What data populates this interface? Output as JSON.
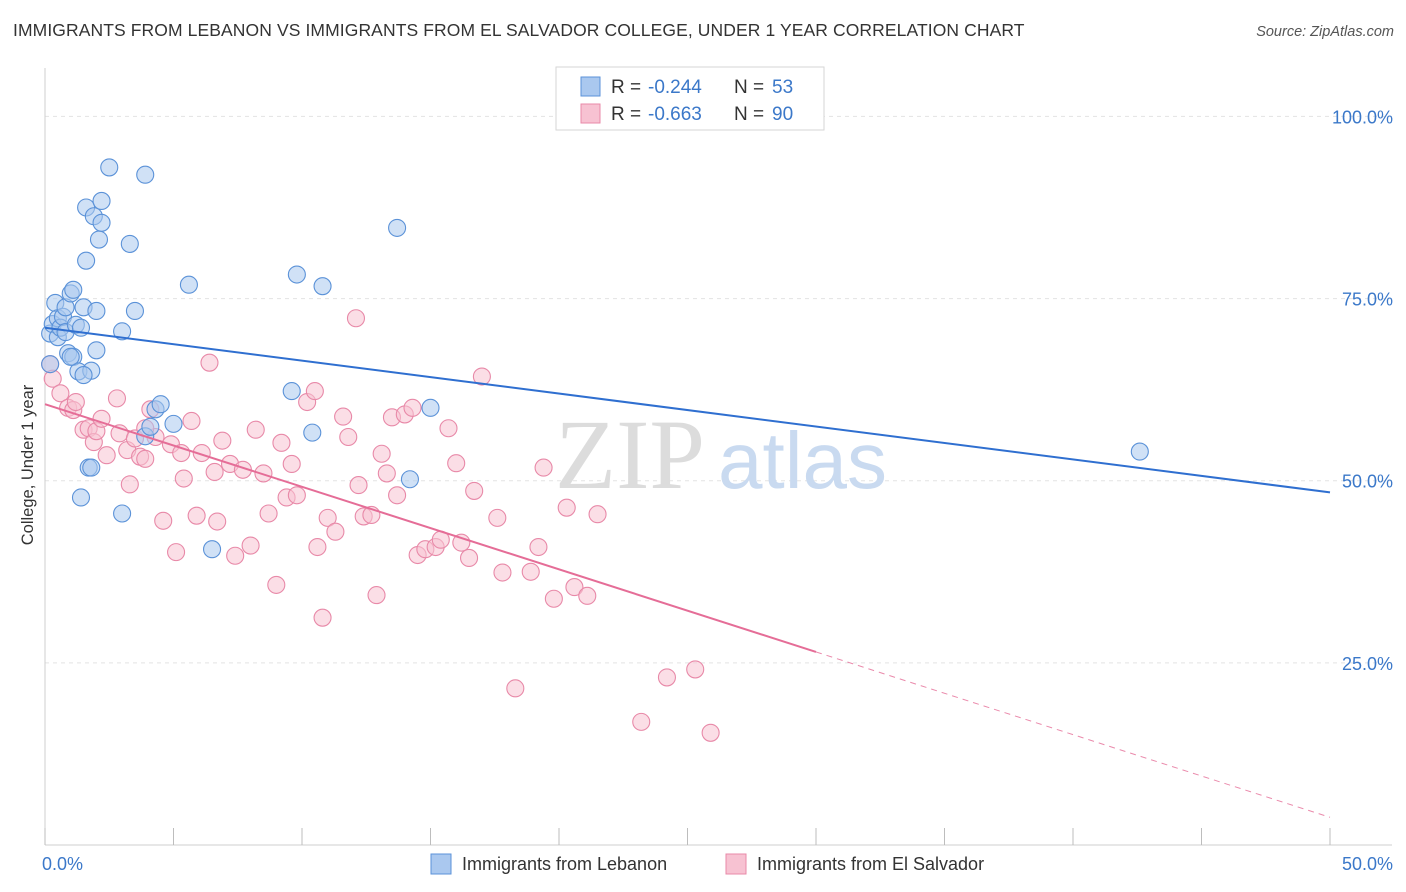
{
  "title": "IMMIGRANTS FROM LEBANON VS IMMIGRANTS FROM EL SALVADOR COLLEGE, UNDER 1 YEAR CORRELATION CHART",
  "source": "Source: ZipAtlas.com",
  "watermark": {
    "zip": "ZIP",
    "atlas": "atlas"
  },
  "stats_box": {
    "rows": [
      {
        "r_label": "R =",
        "r_value": "-0.244",
        "n_label": "N =",
        "n_value": "53"
      },
      {
        "r_label": "R =",
        "r_value": "-0.663",
        "n_label": "N =",
        "n_value": "90"
      }
    ]
  },
  "legend": {
    "items": [
      {
        "label": "Immigrants from Lebanon"
      },
      {
        "label": "Immigrants from El Salvador"
      }
    ]
  },
  "colors": {
    "blue_fill": "#aac8ef",
    "blue_stroke": "#5b92d8",
    "blue_line": "#2f6fd0",
    "pink_fill": "#f7c2d2",
    "pink_stroke": "#e889a8",
    "pink_line": "#e56d97",
    "tick_text": "#3b78c9",
    "grid": "#e3e3e3"
  },
  "chart_data": {
    "type": "scatter",
    "title": "IMMIGRANTS FROM LEBANON VS IMMIGRANTS FROM EL SALVADOR COLLEGE, UNDER 1 YEAR CORRELATION CHART",
    "xlabel": "",
    "ylabel": "College, Under 1 year",
    "xlim": [
      0,
      50
    ],
    "ylim": [
      0,
      105
    ],
    "x_tick_labels": [
      "0.0%",
      "50.0%"
    ],
    "y_ticks": [
      25,
      50,
      75,
      100
    ],
    "y_tick_labels": [
      "25.0%",
      "50.0%",
      "75.0%",
      "100.0%"
    ],
    "grid": true,
    "legend_position": "bottom-center",
    "series": [
      {
        "name": "Immigrants from Lebanon",
        "r": -0.244,
        "n": 53,
        "trend": {
          "x": [
            0,
            50
          ],
          "y": [
            71.0,
            48.4
          ]
        },
        "points": [
          [
            0.2,
            70.2
          ],
          [
            0.3,
            71.5
          ],
          [
            0.4,
            74.4
          ],
          [
            0.5,
            72.3
          ],
          [
            0.5,
            69.7
          ],
          [
            0.6,
            71.0
          ],
          [
            0.7,
            72.5
          ],
          [
            0.8,
            73.8
          ],
          [
            0.8,
            70.4
          ],
          [
            0.9,
            67.5
          ],
          [
            1.0,
            75.7
          ],
          [
            1.1,
            76.2
          ],
          [
            1.1,
            67.0
          ],
          [
            1.2,
            71.4
          ],
          [
            1.3,
            65.0
          ],
          [
            1.4,
            71.0
          ],
          [
            1.5,
            73.8
          ],
          [
            1.6,
            80.2
          ],
          [
            1.6,
            87.5
          ],
          [
            1.7,
            51.8
          ],
          [
            1.8,
            65.1
          ],
          [
            1.9,
            86.3
          ],
          [
            2.0,
            73.3
          ],
          [
            2.0,
            67.9
          ],
          [
            2.1,
            83.1
          ],
          [
            2.2,
            88.4
          ],
          [
            2.2,
            85.4
          ],
          [
            1.8,
            51.8
          ],
          [
            1.4,
            47.7
          ],
          [
            2.5,
            93.0
          ],
          [
            3.0,
            70.5
          ],
          [
            3.0,
            45.5
          ],
          [
            3.3,
            82.5
          ],
          [
            3.5,
            73.3
          ],
          [
            3.9,
            56.1
          ],
          [
            3.9,
            92.0
          ],
          [
            4.1,
            57.4
          ],
          [
            4.3,
            59.8
          ],
          [
            4.5,
            60.5
          ],
          [
            5.0,
            57.8
          ],
          [
            5.6,
            76.9
          ],
          [
            6.5,
            40.6
          ],
          [
            9.6,
            62.3
          ],
          [
            9.8,
            78.3
          ],
          [
            10.4,
            56.6
          ],
          [
            10.8,
            76.7
          ],
          [
            13.7,
            84.7
          ],
          [
            14.2,
            50.2
          ],
          [
            15.0,
            60.0
          ],
          [
            42.6,
            54.0
          ],
          [
            0.2,
            66.0
          ],
          [
            1.0,
            67.0
          ],
          [
            1.5,
            64.5
          ]
        ]
      },
      {
        "name": "Immigrants from El Salvador",
        "r": -0.663,
        "n": 90,
        "trend": {
          "x": [
            0,
            30
          ],
          "y": [
            60.5,
            26.5
          ]
        },
        "trend_dashed": {
          "x": [
            30,
            50
          ],
          "y": [
            26.5,
            3.8
          ]
        },
        "points": [
          [
            0.2,
            66.0
          ],
          [
            0.3,
            64.0
          ],
          [
            0.6,
            62.0
          ],
          [
            0.9,
            60.0
          ],
          [
            1.1,
            59.7
          ],
          [
            1.2,
            60.8
          ],
          [
            1.5,
            57.0
          ],
          [
            1.7,
            57.2
          ],
          [
            1.9,
            55.3
          ],
          [
            2.0,
            56.8
          ],
          [
            2.2,
            58.5
          ],
          [
            2.4,
            53.5
          ],
          [
            2.8,
            61.3
          ],
          [
            2.9,
            56.5
          ],
          [
            3.2,
            54.2
          ],
          [
            3.3,
            49.5
          ],
          [
            3.5,
            55.8
          ],
          [
            3.7,
            53.3
          ],
          [
            3.9,
            53.0
          ],
          [
            4.1,
            59.8
          ],
          [
            4.3,
            56.0
          ],
          [
            4.6,
            44.5
          ],
          [
            4.9,
            55.0
          ],
          [
            5.1,
            40.2
          ],
          [
            5.3,
            53.8
          ],
          [
            5.4,
            50.3
          ],
          [
            5.7,
            58.2
          ],
          [
            5.9,
            45.2
          ],
          [
            6.1,
            53.8
          ],
          [
            6.4,
            66.2
          ],
          [
            6.6,
            51.2
          ],
          [
            6.7,
            44.4
          ],
          [
            6.9,
            55.5
          ],
          [
            7.2,
            52.3
          ],
          [
            7.4,
            39.7
          ],
          [
            7.7,
            51.5
          ],
          [
            8.0,
            41.1
          ],
          [
            8.2,
            57.0
          ],
          [
            8.5,
            51.0
          ],
          [
            8.7,
            45.5
          ],
          [
            9.0,
            35.7
          ],
          [
            9.2,
            55.2
          ],
          [
            9.4,
            47.7
          ],
          [
            9.6,
            52.3
          ],
          [
            9.8,
            48.0
          ],
          [
            10.2,
            60.8
          ],
          [
            10.5,
            62.3
          ],
          [
            10.6,
            40.9
          ],
          [
            10.8,
            31.2
          ],
          [
            11.0,
            44.9
          ],
          [
            11.3,
            43.0
          ],
          [
            11.6,
            58.8
          ],
          [
            11.8,
            56.0
          ],
          [
            12.1,
            72.3
          ],
          [
            12.2,
            49.4
          ],
          [
            12.4,
            45.1
          ],
          [
            12.7,
            45.3
          ],
          [
            12.9,
            34.3
          ],
          [
            13.1,
            53.7
          ],
          [
            13.3,
            51.0
          ],
          [
            13.5,
            58.7
          ],
          [
            13.7,
            48.0
          ],
          [
            14.0,
            59.1
          ],
          [
            14.3,
            60.0
          ],
          [
            14.5,
            39.8
          ],
          [
            14.8,
            40.6
          ],
          [
            15.2,
            40.9
          ],
          [
            15.4,
            41.9
          ],
          [
            15.7,
            57.2
          ],
          [
            16.0,
            52.4
          ],
          [
            16.2,
            41.5
          ],
          [
            16.5,
            39.4
          ],
          [
            16.7,
            48.6
          ],
          [
            17.0,
            64.3
          ],
          [
            17.6,
            44.9
          ],
          [
            17.8,
            37.4
          ],
          [
            18.3,
            21.5
          ],
          [
            18.9,
            37.5
          ],
          [
            19.2,
            40.9
          ],
          [
            19.4,
            51.8
          ],
          [
            19.8,
            33.8
          ],
          [
            20.3,
            46.3
          ],
          [
            20.6,
            35.4
          ],
          [
            21.1,
            34.2
          ],
          [
            21.5,
            45.4
          ],
          [
            23.2,
            16.9
          ],
          [
            24.2,
            23.0
          ],
          [
            25.3,
            24.1
          ],
          [
            25.9,
            15.4
          ],
          [
            3.9,
            57.2
          ]
        ]
      }
    ]
  }
}
